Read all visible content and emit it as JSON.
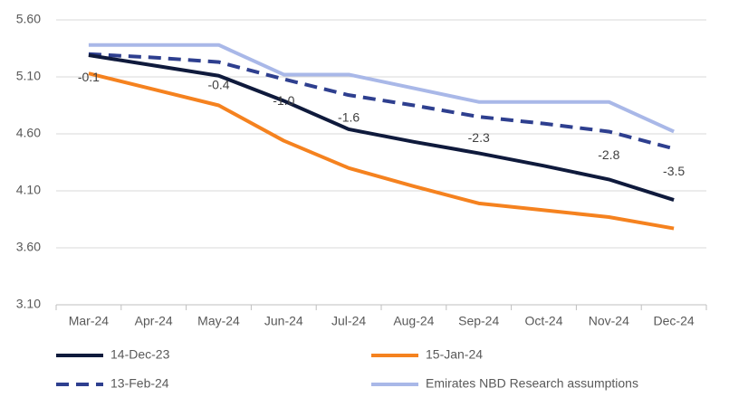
{
  "chart_data": {
    "type": "line",
    "categories": [
      "Mar-24",
      "Apr-24",
      "May-24",
      "Jun-24",
      "Jul-24",
      "Aug-24",
      "Sep-24",
      "Oct-24",
      "Nov-24",
      "Dec-24"
    ],
    "series": [
      {
        "name": "14-Dec-23",
        "color": "#0f1a3c",
        "dash": false,
        "values": [
          5.29,
          5.2,
          5.11,
          4.89,
          4.64,
          4.53,
          4.43,
          4.32,
          4.2,
          4.02
        ]
      },
      {
        "name": "15-Jan-24",
        "color": "#f5821f",
        "dash": false,
        "values": [
          5.13,
          4.99,
          4.85,
          4.54,
          4.3,
          4.14,
          3.99,
          3.93,
          3.87,
          3.77
        ]
      },
      {
        "name": "13-Feb-24",
        "color": "#2e3f8f",
        "dash": true,
        "values": [
          5.3,
          5.27,
          5.23,
          5.08,
          4.94,
          4.85,
          4.75,
          4.69,
          4.62,
          4.47
        ]
      },
      {
        "name": "Emirates NBD Research assumptions",
        "color": "#a9b8e8",
        "dash": false,
        "values": [
          5.38,
          5.38,
          5.38,
          5.12,
          5.12,
          5.0,
          4.88,
          4.88,
          4.88,
          4.62
        ]
      }
    ],
    "annotations": [
      {
        "category": "Mar-24",
        "text": "-0.1"
      },
      {
        "category": "May-24",
        "text": "-0.4"
      },
      {
        "category": "Jun-24",
        "text": "-1.0"
      },
      {
        "category": "Jul-24",
        "text": "-1.6"
      },
      {
        "category": "Sep-24",
        "text": "-2.3"
      },
      {
        "category": "Nov-24",
        "text": "-2.8"
      },
      {
        "category": "Dec-24",
        "text": "-3.5"
      }
    ],
    "ylim": [
      3.1,
      5.6
    ],
    "yticks": [
      {
        "value": 3.1,
        "label": "3.10"
      },
      {
        "value": 3.6,
        "label": "3.60"
      },
      {
        "value": 4.1,
        "label": "4.10"
      },
      {
        "value": 4.6,
        "label": "4.60"
      },
      {
        "value": 5.1,
        "label": "5.10"
      },
      {
        "value": 5.6,
        "label": "5.60"
      }
    ],
    "grid": true,
    "legend": "bottom"
  }
}
